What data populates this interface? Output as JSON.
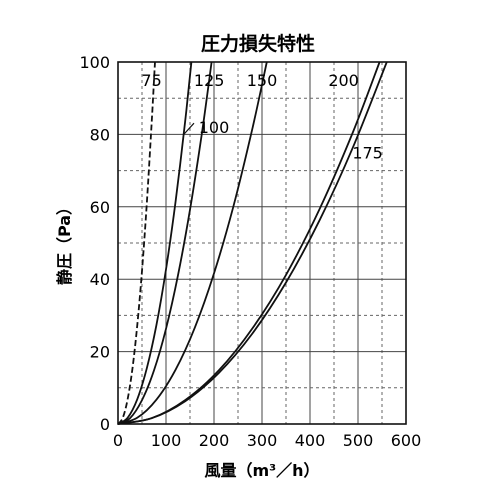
{
  "chart_data": {
    "type": "line",
    "title": "圧力損失特性",
    "xlabel": "風量（m³／h）",
    "ylabel": "静圧（Pa）",
    "xlim": [
      0,
      600
    ],
    "ylim": [
      0,
      100
    ],
    "x_ticks": [
      "0",
      "100",
      "200",
      "300",
      "400",
      "500",
      "600"
    ],
    "y_ticks": [
      "0",
      "20",
      "40",
      "60",
      "80",
      "100"
    ],
    "grid": true,
    "legend": "none",
    "series": [
      {
        "name": "75",
        "x": [
          0,
          10,
          20,
          30,
          40,
          50,
          60,
          70,
          77
        ],
        "y": [
          0,
          1.7,
          6.8,
          15.2,
          27.1,
          42.3,
          60.9,
          82.9,
          100
        ]
      },
      {
        "name": "100",
        "x": [
          0,
          20,
          40,
          60,
          80,
          100,
          120,
          140,
          153
        ],
        "y": [
          0,
          1.7,
          6.8,
          15.4,
          27.3,
          42.7,
          61.5,
          83.7,
          100
        ]
      },
      {
        "name": "125",
        "x": [
          0,
          25,
          50,
          75,
          100,
          125,
          150,
          175,
          195
        ],
        "y": [
          0,
          1.6,
          6.6,
          14.8,
          26.3,
          41.1,
          59.2,
          80.5,
          100
        ]
      },
      {
        "name": "150",
        "x": [
          0,
          40,
          80,
          120,
          160,
          200,
          240,
          280,
          310
        ],
        "y": [
          0,
          1.7,
          6.7,
          15.0,
          26.6,
          41.6,
          59.9,
          81.6,
          100
        ]
      },
      {
        "name": "175",
        "x": [
          0,
          70,
          140,
          210,
          280,
          350,
          420,
          490,
          545
        ],
        "y": [
          0,
          1.6,
          6.6,
          14.8,
          26.4,
          41.2,
          59.4,
          80.8,
          100
        ]
      },
      {
        "name": "200",
        "x": [
          0,
          70,
          140,
          210,
          280,
          350,
          420,
          490,
          560
        ],
        "y": [
          0,
          1.6,
          6.3,
          14.1,
          25.0,
          39.1,
          56.3,
          76.6,
          100
        ]
      }
    ],
    "curve_labels": [
      {
        "text": "75",
        "x": 70,
        "y": 95
      },
      {
        "text": "100",
        "x": 200,
        "y": 82
      },
      {
        "text": "125",
        "x": 190,
        "y": 95
      },
      {
        "text": "150",
        "x": 300,
        "y": 95
      },
      {
        "text": "175",
        "x": 520,
        "y": 75
      },
      {
        "text": "200",
        "x": 470,
        "y": 95
      }
    ]
  }
}
